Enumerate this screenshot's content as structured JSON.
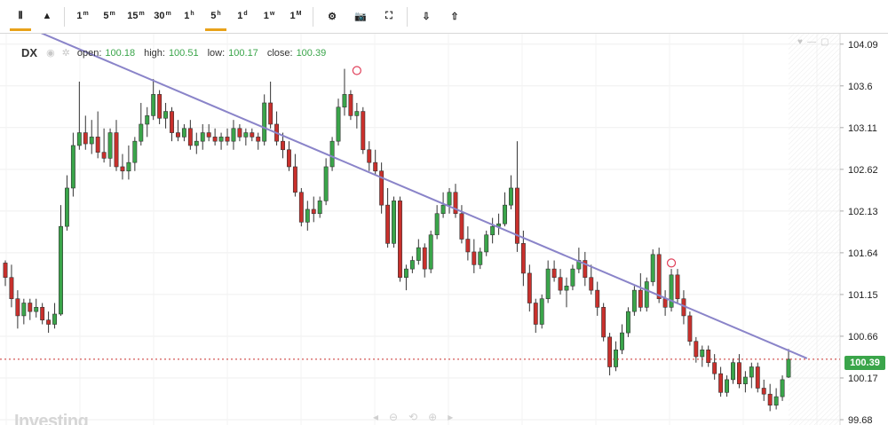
{
  "toolbar": {
    "chart_type_icons": [
      "candlestick-icon",
      "area-chart-icon"
    ],
    "intervals": [
      {
        "label": "1",
        "sup": "m",
        "active": false
      },
      {
        "label": "5",
        "sup": "m",
        "active": false
      },
      {
        "label": "15",
        "sup": "m",
        "active": false
      },
      {
        "label": "30",
        "sup": "m",
        "active": false
      },
      {
        "label": "1",
        "sup": "h",
        "active": false
      },
      {
        "label": "5",
        "sup": "h",
        "active": true
      },
      {
        "label": "1",
        "sup": "d",
        "active": false
      },
      {
        "label": "1",
        "sup": "w",
        "active": false
      },
      {
        "label": "1",
        "sup": "M",
        "active": false
      }
    ],
    "tool_icons": [
      "gear-icon",
      "camera-icon",
      "fullscreen-icon"
    ],
    "io_icons": [
      "cloud-download-icon",
      "cloud-upload-icon"
    ],
    "accent": "#e8a21a"
  },
  "hud": {
    "symbol": "DX",
    "open_label": "open:",
    "open": "100.18",
    "high_label": "high:",
    "high": "100.51",
    "low_label": "low:",
    "low": "100.17",
    "close_label": "close:",
    "close": "100.39"
  },
  "watermark": "Investing",
  "last_price": "100.39",
  "colors": {
    "up": "#3aa54a",
    "down": "#c9302c",
    "trendline": "#8a84c9",
    "last_line": "#c9302c"
  },
  "chart_data": {
    "type": "candlestick",
    "symbol": "DX",
    "interval": "5h",
    "ylim": [
      99.68,
      104.15
    ],
    "y_ticks": [
      "104.09",
      "103.6",
      "103.11",
      "102.62",
      "102.13",
      "101.64",
      "101.15",
      "100.66",
      "100.17",
      "99.68"
    ],
    "last_price": 100.39,
    "candles": [
      [
        101.52,
        101.55,
        101.25,
        101.35
      ],
      [
        101.35,
        101.5,
        101.0,
        101.1
      ],
      [
        101.1,
        101.2,
        100.75,
        100.9
      ],
      [
        100.9,
        101.1,
        100.8,
        101.05
      ],
      [
        101.05,
        101.1,
        100.85,
        100.95
      ],
      [
        100.95,
        101.1,
        100.88,
        101.0
      ],
      [
        101.0,
        101.05,
        100.8,
        100.85
      ],
      [
        100.85,
        100.95,
        100.7,
        100.8
      ],
      [
        100.8,
        101.05,
        100.75,
        100.92
      ],
      [
        100.92,
        102.2,
        100.9,
        101.95
      ],
      [
        101.95,
        102.55,
        101.9,
        102.4
      ],
      [
        102.4,
        103.05,
        102.3,
        102.9
      ],
      [
        102.9,
        103.65,
        102.85,
        103.05
      ],
      [
        103.05,
        103.25,
        102.85,
        102.92
      ],
      [
        102.92,
        103.2,
        102.8,
        103.0
      ],
      [
        103.0,
        103.3,
        102.75,
        102.82
      ],
      [
        102.82,
        103.1,
        102.7,
        102.75
      ],
      [
        102.75,
        103.1,
        102.65,
        103.05
      ],
      [
        103.05,
        103.2,
        102.6,
        102.65
      ],
      [
        102.65,
        102.8,
        102.5,
        102.6
      ],
      [
        102.6,
        102.9,
        102.5,
        102.7
      ],
      [
        102.7,
        103.0,
        102.6,
        102.95
      ],
      [
        102.95,
        103.4,
        102.9,
        103.15
      ],
      [
        103.15,
        103.35,
        103.0,
        103.25
      ],
      [
        103.25,
        103.68,
        103.2,
        103.5
      ],
      [
        103.5,
        103.55,
        103.15,
        103.22
      ],
      [
        103.22,
        103.4,
        103.1,
        103.3
      ],
      [
        103.3,
        103.35,
        102.95,
        103.05
      ],
      [
        103.05,
        103.2,
        102.95,
        103.0
      ],
      [
        103.0,
        103.15,
        102.95,
        103.1
      ],
      [
        103.1,
        103.2,
        102.85,
        102.9
      ],
      [
        102.9,
        103.05,
        102.8,
        102.95
      ],
      [
        102.95,
        103.15,
        102.85,
        103.05
      ],
      [
        103.05,
        103.15,
        102.95,
        103.0
      ],
      [
        103.0,
        103.1,
        102.9,
        102.95
      ],
      [
        102.95,
        103.05,
        102.85,
        103.0
      ],
      [
        103.0,
        103.1,
        102.9,
        102.95
      ],
      [
        102.95,
        103.2,
        102.85,
        103.1
      ],
      [
        103.1,
        103.15,
        102.95,
        103.0
      ],
      [
        103.0,
        103.1,
        102.9,
        103.05
      ],
      [
        103.05,
        103.1,
        102.95,
        103.0
      ],
      [
        103.0,
        103.05,
        102.85,
        102.95
      ],
      [
        102.95,
        103.5,
        102.9,
        103.4
      ],
      [
        103.4,
        103.65,
        103.1,
        103.15
      ],
      [
        103.15,
        103.3,
        102.9,
        102.95
      ],
      [
        102.95,
        103.05,
        102.75,
        102.85
      ],
      [
        102.85,
        102.95,
        102.6,
        102.65
      ],
      [
        102.65,
        102.8,
        102.3,
        102.35
      ],
      [
        102.35,
        102.4,
        101.95,
        102.0
      ],
      [
        102.0,
        102.25,
        101.9,
        102.15
      ],
      [
        102.15,
        102.3,
        102.0,
        102.1
      ],
      [
        102.1,
        102.3,
        102.05,
        102.25
      ],
      [
        102.25,
        102.75,
        102.2,
        102.65
      ],
      [
        102.65,
        103.0,
        102.6,
        102.95
      ],
      [
        102.95,
        103.45,
        102.9,
        103.35
      ],
      [
        103.35,
        103.8,
        103.25,
        103.5
      ],
      [
        103.5,
        103.55,
        103.2,
        103.25
      ],
      [
        103.25,
        103.4,
        103.1,
        103.3
      ],
      [
        103.3,
        103.35,
        102.8,
        102.85
      ],
      [
        102.85,
        102.95,
        102.6,
        102.7
      ],
      [
        102.7,
        102.85,
        102.55,
        102.6
      ],
      [
        102.6,
        102.7,
        102.1,
        102.2
      ],
      [
        102.2,
        102.4,
        101.7,
        101.75
      ],
      [
        101.75,
        102.3,
        101.7,
        102.25
      ],
      [
        102.25,
        102.3,
        101.3,
        101.35
      ],
      [
        101.35,
        101.5,
        101.2,
        101.45
      ],
      [
        101.45,
        101.6,
        101.4,
        101.55
      ],
      [
        101.55,
        101.8,
        101.5,
        101.7
      ],
      [
        101.7,
        101.75,
        101.35,
        101.45
      ],
      [
        101.45,
        101.9,
        101.4,
        101.85
      ],
      [
        101.85,
        102.2,
        101.8,
        102.1
      ],
      [
        102.1,
        102.35,
        102.05,
        102.2
      ],
      [
        102.2,
        102.4,
        102.1,
        102.35
      ],
      [
        102.35,
        102.45,
        102.05,
        102.1
      ],
      [
        102.1,
        102.2,
        101.75,
        101.8
      ],
      [
        101.8,
        101.95,
        101.55,
        101.65
      ],
      [
        101.65,
        101.8,
        101.4,
        101.5
      ],
      [
        101.5,
        101.7,
        101.45,
        101.65
      ],
      [
        101.65,
        101.9,
        101.6,
        101.85
      ],
      [
        101.85,
        102.05,
        101.75,
        101.95
      ],
      [
        101.95,
        102.1,
        101.85,
        101.98
      ],
      [
        101.98,
        102.35,
        101.95,
        102.2
      ],
      [
        102.2,
        102.55,
        102.15,
        102.4
      ],
      [
        102.4,
        102.95,
        101.65,
        101.75
      ],
      [
        101.75,
        101.9,
        101.25,
        101.4
      ],
      [
        101.4,
        101.5,
        100.95,
        101.05
      ],
      [
        101.05,
        101.1,
        100.7,
        100.8
      ],
      [
        100.8,
        101.15,
        100.75,
        101.1
      ],
      [
        101.1,
        101.55,
        101.05,
        101.45
      ],
      [
        101.45,
        101.55,
        101.3,
        101.35
      ],
      [
        101.35,
        101.45,
        101.15,
        101.2
      ],
      [
        101.2,
        101.35,
        101.0,
        101.25
      ],
      [
        101.25,
        101.5,
        101.2,
        101.45
      ],
      [
        101.45,
        101.7,
        101.4,
        101.55
      ],
      [
        101.55,
        101.65,
        101.25,
        101.35
      ],
      [
        101.35,
        101.5,
        101.15,
        101.2
      ],
      [
        101.2,
        101.3,
        100.9,
        101.0
      ],
      [
        101.0,
        101.05,
        100.6,
        100.65
      ],
      [
        100.65,
        100.7,
        100.2,
        100.3
      ],
      [
        100.3,
        100.6,
        100.25,
        100.5
      ],
      [
        100.5,
        100.8,
        100.45,
        100.7
      ],
      [
        100.7,
        101.0,
        100.65,
        100.95
      ],
      [
        100.95,
        101.25,
        100.9,
        101.2
      ],
      [
        101.2,
        101.4,
        100.95,
        101.0
      ],
      [
        101.0,
        101.35,
        100.95,
        101.3
      ],
      [
        101.3,
        101.68,
        101.25,
        101.62
      ],
      [
        101.62,
        101.7,
        101.05,
        101.1
      ],
      [
        101.1,
        101.2,
        100.9,
        101.0
      ],
      [
        101.0,
        101.45,
        100.95,
        101.38
      ],
      [
        101.38,
        101.45,
        101.05,
        101.1
      ],
      [
        101.1,
        101.2,
        100.8,
        100.9
      ],
      [
        100.9,
        100.95,
        100.55,
        100.6
      ],
      [
        100.6,
        100.65,
        100.35,
        100.42
      ],
      [
        100.42,
        100.55,
        100.3,
        100.5
      ],
      [
        100.5,
        100.55,
        100.3,
        100.35
      ],
      [
        100.35,
        100.45,
        100.15,
        100.22
      ],
      [
        100.22,
        100.3,
        99.95,
        100.0
      ],
      [
        100.0,
        100.2,
        99.95,
        100.15
      ],
      [
        100.15,
        100.4,
        100.1,
        100.35
      ],
      [
        100.35,
        100.45,
        100.05,
        100.1
      ],
      [
        100.1,
        100.25,
        100.0,
        100.18
      ],
      [
        100.18,
        100.35,
        100.05,
        100.3
      ],
      [
        100.3,
        100.35,
        100.0,
        100.05
      ],
      [
        100.05,
        100.15,
        99.9,
        99.98
      ],
      [
        99.98,
        100.1,
        99.78,
        99.85
      ],
      [
        99.85,
        100.05,
        99.8,
        99.95
      ],
      [
        99.95,
        100.2,
        99.9,
        100.15
      ],
      [
        100.18,
        100.51,
        100.17,
        100.39
      ]
    ],
    "trendline": [
      {
        "x_index": 0,
        "y": 104.4
      },
      {
        "x_index": 130,
        "y": 100.4
      }
    ],
    "trendline_anchors": [
      {
        "x_index": 57,
        "y": 103.78
      },
      {
        "x_index": 108,
        "y": 101.52
      }
    ]
  }
}
